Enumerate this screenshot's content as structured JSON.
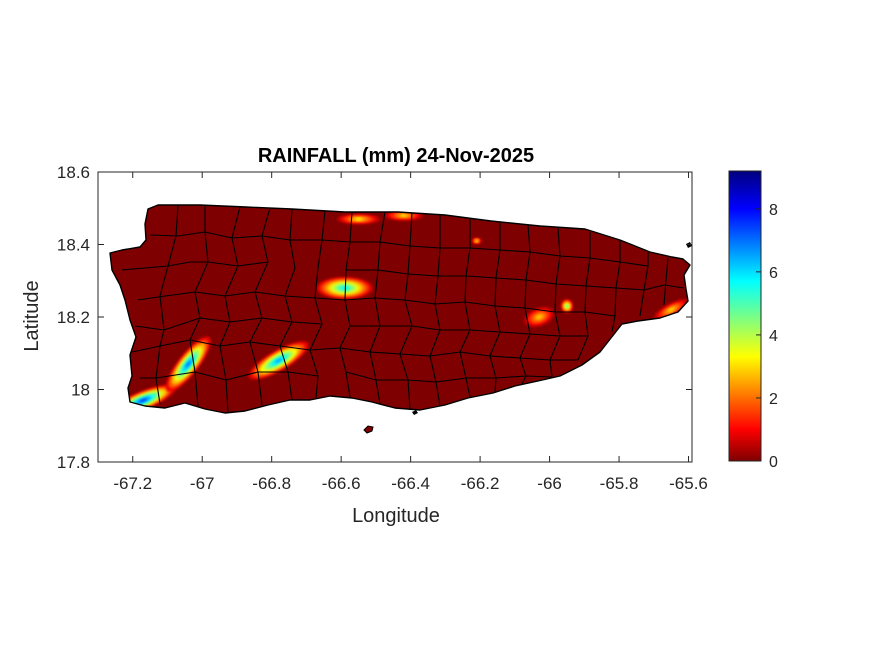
{
  "chart_data": {
    "type": "heatmap",
    "title": "RAINFALL (mm) 24-Nov-2025",
    "xlabel": "Longitude",
    "ylabel": "Latitude",
    "xlim": [
      -67.3,
      -65.59
    ],
    "ylim": [
      17.8,
      18.6
    ],
    "xticks": [
      -67.2,
      -67,
      -66.8,
      -66.6,
      -66.4,
      -66.2,
      -66,
      -65.8,
      -65.6
    ],
    "xtick_labels": [
      "-67.2",
      "-67",
      "-66.8",
      "-66.6",
      "-66.4",
      "-66.2",
      "-66",
      "-65.8",
      "-65.6"
    ],
    "yticks": [
      17.8,
      18,
      18.2,
      18.4,
      18.6
    ],
    "ytick_labels": [
      "17.8",
      "18",
      "18.2",
      "18.4",
      "18.6"
    ],
    "grid": false,
    "colormap": "jet",
    "colorbar": {
      "range": [
        0,
        9.2
      ],
      "ticks": [
        0,
        2,
        4,
        6,
        8
      ],
      "tick_labels": [
        "0",
        "2",
        "4",
        "6",
        "8"
      ],
      "colors": [
        "#7f0000",
        "#ff0000",
        "#ffff00",
        "#00ffff",
        "#0000ff",
        "#00007f"
      ]
    },
    "background_value": 0,
    "rain_cells": [
      {
        "lon": -67.17,
        "lat": 17.97,
        "peak_mm": 7.5
      },
      {
        "lon": -67.04,
        "lat": 18.07,
        "peak_mm": 7.0
      },
      {
        "lon": -66.78,
        "lat": 18.08,
        "peak_mm": 6.6
      },
      {
        "lon": -66.59,
        "lat": 18.28,
        "peak_mm": 5.8
      },
      {
        "lon": -66.55,
        "lat": 18.47,
        "peak_mm": 3.2
      },
      {
        "lon": -66.42,
        "lat": 18.48,
        "peak_mm": 3.0
      },
      {
        "lon": -66.21,
        "lat": 18.41,
        "peak_mm": 2.8
      },
      {
        "lon": -66.03,
        "lat": 18.2,
        "peak_mm": 2.9
      },
      {
        "lon": -65.95,
        "lat": 18.23,
        "peak_mm": 4.6
      },
      {
        "lon": -65.65,
        "lat": 18.22,
        "peak_mm": 3.0
      }
    ]
  }
}
